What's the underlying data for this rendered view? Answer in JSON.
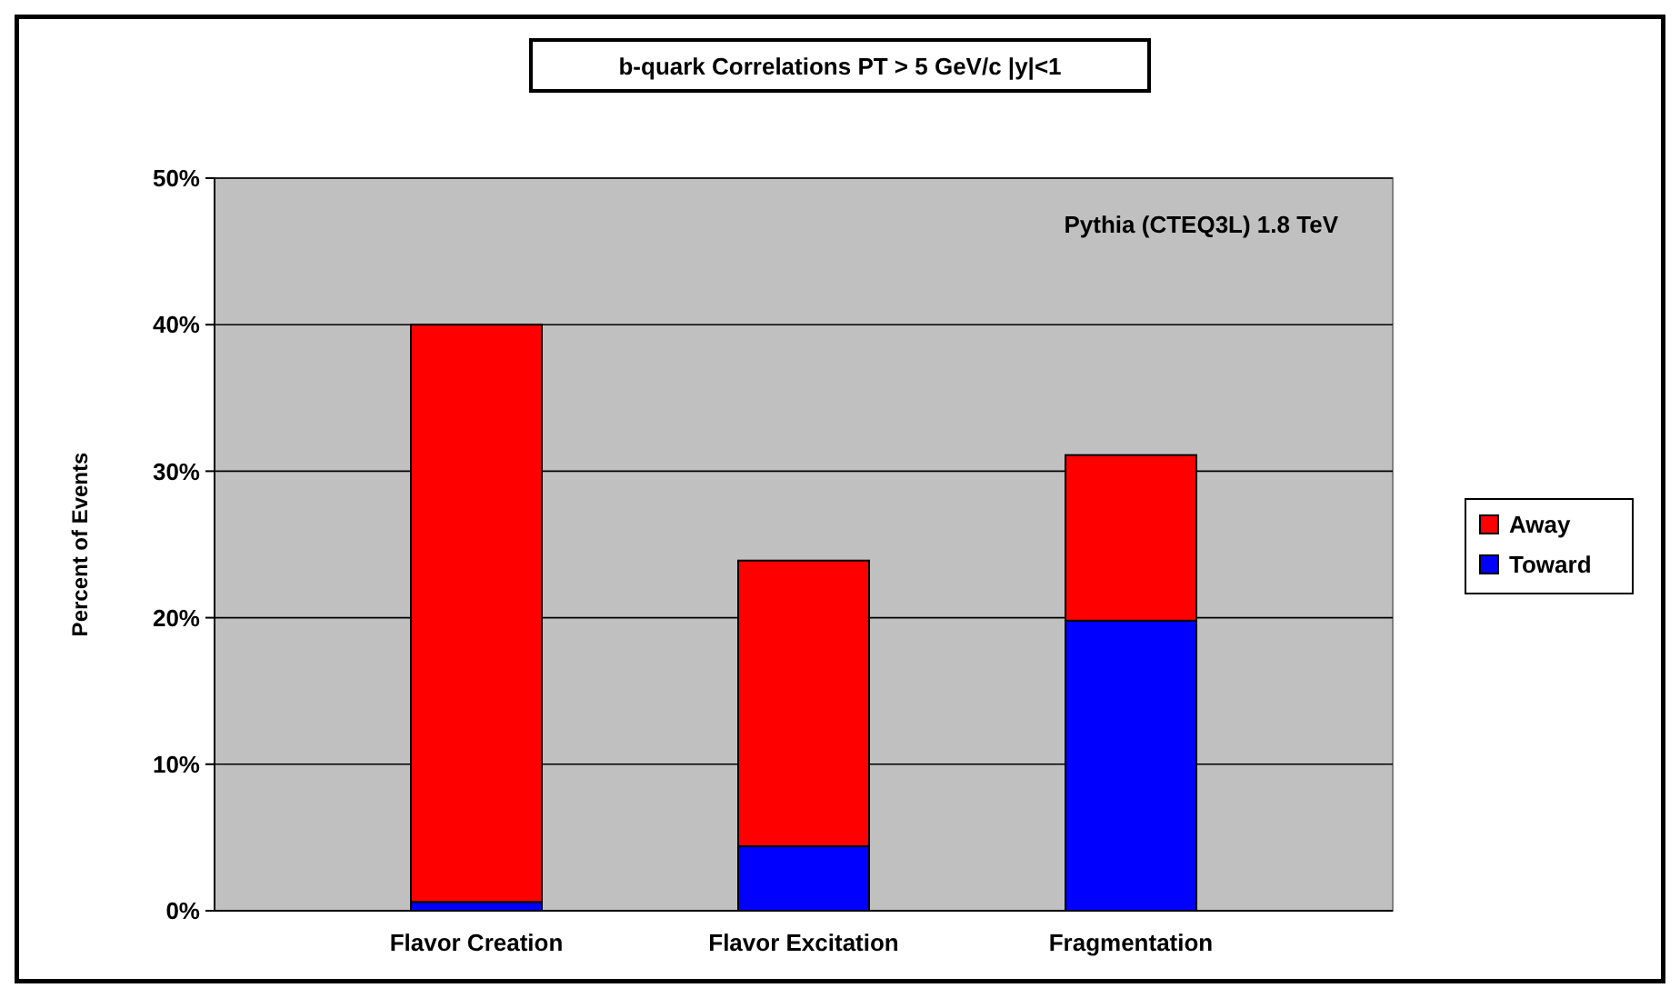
{
  "chart_data": {
    "type": "bar",
    "title": "b-quark Correlations PT > 5 GeV/c |y|<1",
    "ylabel": "Percent of Events",
    "categories": [
      "Flavor Creation",
      "Flavor Excitation",
      "Fragmentation"
    ],
    "stacked": true,
    "series": [
      {
        "name": "Toward",
        "color": "#0000ff",
        "values": [
          0.6,
          4.4,
          19.8
        ]
      },
      {
        "name": "Away",
        "color": "#ff0000",
        "values": [
          39.4,
          19.5,
          11.3
        ]
      }
    ],
    "ylim": [
      0,
      50
    ],
    "yticks": [
      {
        "value": 0,
        "label": "0%"
      },
      {
        "value": 10,
        "label": "10%"
      },
      {
        "value": 20,
        "label": "20%"
      },
      {
        "value": 30,
        "label": "30%"
      },
      {
        "value": 40,
        "label": "40%"
      },
      {
        "value": 50,
        "label": "50%"
      }
    ],
    "grid": "y",
    "legend": "right",
    "annotations": [
      "Pythia (CTEQ3L)  1.8 TeV"
    ]
  }
}
